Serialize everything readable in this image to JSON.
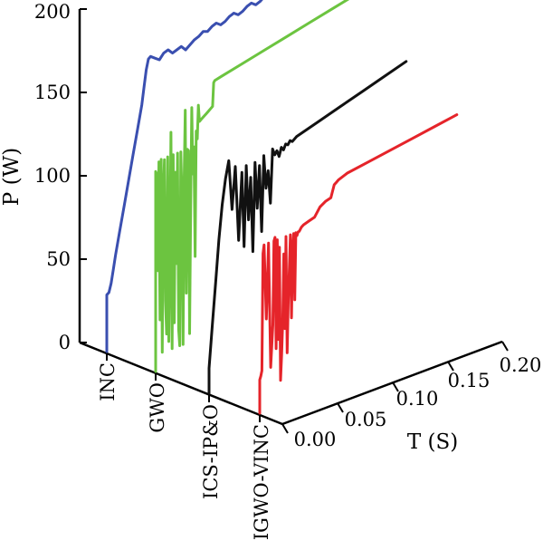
{
  "chart_data": {
    "type": "line",
    "zlabel": "P (W)",
    "xlabel": "T (S)",
    "zlim": [
      0,
      200
    ],
    "xlim": [
      0,
      0.2
    ],
    "z_ticks": [
      "0",
      "50",
      "100",
      "150",
      "200"
    ],
    "x_ticks": [
      "0.00",
      "0.05",
      "0.10",
      "0.15",
      "0.20"
    ],
    "categories": [
      "INC",
      "GWO",
      "ICS-IP&O",
      "IGWO-VINC"
    ],
    "colors": {
      "INC": "#3a4fb0",
      "GWO": "#6cc440",
      "ICS-IP&O": "#111111",
      "IGWO-VINC": "#e5242a"
    },
    "series": [
      {
        "name": "INC",
        "t": [
          0,
          0.0,
          0.002,
          0.004,
          0.006,
          0.008,
          0.012,
          0.016,
          0.02,
          0.024,
          0.028,
          0.032,
          0.034,
          0.036,
          0.038,
          0.04,
          0.044,
          0.048,
          0.052,
          0.056,
          0.06,
          0.064,
          0.068,
          0.072,
          0.076,
          0.08,
          0.084,
          0.088,
          0.092,
          0.096,
          0.1,
          0.104,
          0.108,
          0.112,
          0.116,
          0.12,
          0.124,
          0.128,
          0.132,
          0.136,
          0.14,
          0.144,
          0.148,
          0.152,
          0.156,
          0.16,
          0.164,
          0.168,
          0.172,
          0.176,
          0.18,
          0.185
        ],
        "p": [
          0,
          34,
          35,
          40,
          48,
          56,
          70,
          84,
          98,
          112,
          126,
          140,
          150,
          160,
          166,
          167,
          165,
          163,
          166,
          167,
          164,
          165,
          166,
          163,
          165,
          167,
          168,
          170,
          169,
          171,
          172,
          170,
          171,
          173,
          174,
          172,
          173,
          175,
          176,
          174,
          175,
          177,
          178,
          177,
          179,
          180,
          181,
          180,
          182,
          183,
          183,
          182
        ]
      },
      {
        "name": "GWO",
        "t": [
          0,
          0.0,
          0.001,
          0.002,
          0.003,
          0.004,
          0.005,
          0.006,
          0.007,
          0.008,
          0.009,
          0.01,
          0.011,
          0.012,
          0.013,
          0.014,
          0.015,
          0.016,
          0.017,
          0.018,
          0.019,
          0.02,
          0.021,
          0.022,
          0.023,
          0.024,
          0.025,
          0.026,
          0.027,
          0.028,
          0.029,
          0.03,
          0.031,
          0.032,
          0.033,
          0.034,
          0.035,
          0.036,
          0.037,
          0.038,
          0.039,
          0.04,
          0.042,
          0.044,
          0.046,
          0.048,
          0.05,
          0.052,
          0.053,
          0.054,
          0.06,
          0.08,
          0.1,
          0.12,
          0.14,
          0.16,
          0.18
        ],
        "p": [
          0,
          120,
          118,
          60,
          125,
          30,
          126,
          10,
          105,
          125,
          40,
          20,
          126,
          15,
          70,
          140,
          10,
          126,
          25,
          115,
          60,
          126,
          20,
          10,
          126,
          100,
          10,
          110,
          150,
          40,
          126,
          125,
          15,
          90,
          150,
          110,
          126,
          60,
          135,
          130,
          150,
          140,
          141,
          142,
          143,
          144,
          145,
          146,
          160,
          161,
          162,
          165,
          168,
          171,
          174,
          177,
          180
        ]
      },
      {
        "name": "ICS-IP&O",
        "t": [
          0,
          0.0,
          0.003,
          0.006,
          0.009,
          0.012,
          0.015,
          0.018,
          0.021,
          0.024,
          0.027,
          0.03,
          0.032,
          0.034,
          0.036,
          0.038,
          0.04,
          0.042,
          0.044,
          0.046,
          0.048,
          0.05,
          0.052,
          0.054,
          0.056,
          0.058,
          0.06,
          0.062,
          0.064,
          0.066,
          0.068,
          0.07,
          0.072,
          0.074,
          0.076,
          0.08,
          0.1,
          0.12,
          0.14,
          0.16,
          0.18
        ],
        "p": [
          0,
          15,
          40,
          65,
          90,
          110,
          125,
          135,
          105,
          130,
          85,
          125,
          80,
          128,
          95,
          120,
          75,
          128,
          100,
          125,
          85,
          130,
          110,
          120,
          100,
          132,
          128,
          130,
          126,
          131,
          129,
          132,
          131,
          133,
          132,
          134,
          138,
          142,
          146,
          150,
          154
        ]
      },
      {
        "name": "IGWO-VINC",
        "t": [
          0,
          0.0,
          0.001,
          0.002,
          0.003,
          0.004,
          0.006,
          0.008,
          0.01,
          0.012,
          0.013,
          0.014,
          0.015,
          0.016,
          0.017,
          0.018,
          0.019,
          0.02,
          0.021,
          0.022,
          0.023,
          0.024,
          0.025,
          0.026,
          0.027,
          0.028,
          0.029,
          0.03,
          0.031,
          0.032,
          0.033,
          0.034,
          0.035,
          0.036,
          0.038,
          0.04,
          0.045,
          0.05,
          0.055,
          0.06,
          0.065,
          0.068,
          0.07,
          0.072,
          0.08,
          0.1,
          0.12,
          0.14,
          0.16,
          0.18
        ],
        "p": [
          0,
          20,
          22,
          25,
          95,
          100,
          55,
          100,
          25,
          50,
          100,
          102,
          35,
          100,
          40,
          95,
          15,
          30,
          50,
          90,
          45,
          100,
          30,
          60,
          80,
          100,
          50,
          90,
          100,
          60,
          100,
          98,
          100,
          100,
          102,
          103,
          104,
          105,
          110,
          112,
          113,
          120,
          121,
          122,
          124,
          126,
          128,
          130,
          132,
          134
        ]
      }
    ]
  }
}
